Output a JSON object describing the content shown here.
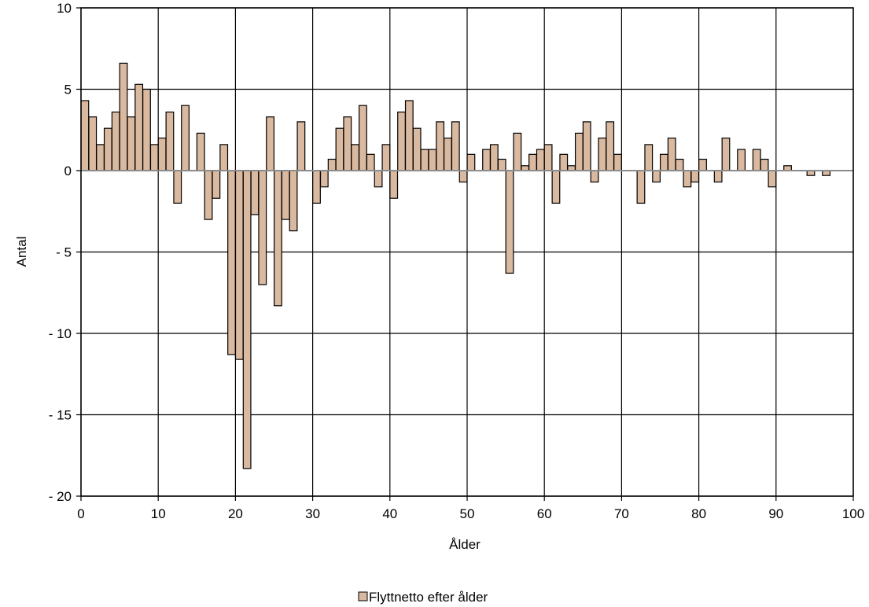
{
  "chart_data": {
    "type": "bar",
    "title": "",
    "xlabel": "Ålder",
    "ylabel": "Antal",
    "xlim": [
      0,
      100
    ],
    "ylim": [
      -20,
      10
    ],
    "x_ticks": [
      0,
      10,
      20,
      30,
      40,
      50,
      60,
      70,
      80,
      90,
      100
    ],
    "x_tick_labels": [
      "0",
      "10",
      "20",
      "30",
      "40",
      "50",
      "60",
      "70",
      "80",
      "90",
      "100"
    ],
    "y_ticks": [
      10,
      5,
      0,
      -5,
      -10,
      -15,
      -20
    ],
    "y_tick_labels": [
      "10",
      "5",
      "0",
      "- 5",
      "- 10",
      "- 15",
      "- 20"
    ],
    "grid": true,
    "legend_position": "bottom-center",
    "series": [
      {
        "name": "Flyttnetto efter ålder",
        "color": "#d9b9a0",
        "x": [
          0,
          1,
          2,
          3,
          4,
          5,
          6,
          7,
          8,
          9,
          10,
          11,
          12,
          13,
          14,
          15,
          16,
          17,
          18,
          19,
          20,
          21,
          22,
          23,
          24,
          25,
          26,
          27,
          28,
          29,
          30,
          31,
          32,
          33,
          34,
          35,
          36,
          37,
          38,
          39,
          40,
          41,
          42,
          43,
          44,
          45,
          46,
          47,
          48,
          49,
          50,
          51,
          52,
          53,
          54,
          55,
          56,
          57,
          58,
          59,
          60,
          61,
          62,
          63,
          64,
          65,
          66,
          67,
          68,
          69,
          70,
          71,
          72,
          73,
          74,
          75,
          76,
          77,
          78,
          79,
          80,
          81,
          82,
          83,
          84,
          85,
          86,
          87,
          88,
          89,
          90,
          91,
          92,
          93,
          94,
          95,
          96,
          97,
          98,
          99
        ],
        "values": [
          4.3,
          3.3,
          1.6,
          2.6,
          3.6,
          6.6,
          3.3,
          5.3,
          5.0,
          1.6,
          2.0,
          3.6,
          -2.0,
          4.0,
          0,
          2.3,
          -3.0,
          -1.7,
          1.6,
          -11.3,
          -11.6,
          -18.3,
          -2.7,
          -7.0,
          3.3,
          -8.3,
          -3.0,
          -3.7,
          3.0,
          0,
          -2.0,
          -1.0,
          0.7,
          2.6,
          3.3,
          1.6,
          4.0,
          1.0,
          -1.0,
          1.6,
          -1.7,
          3.6,
          4.3,
          2.6,
          1.3,
          1.3,
          3.0,
          2.0,
          3.0,
          -0.7,
          1.0,
          0,
          1.3,
          1.6,
          0.7,
          -6.3,
          2.3,
          0.3,
          1.0,
          1.3,
          1.6,
          -2.0,
          1.0,
          0.3,
          2.3,
          3.0,
          -0.7,
          2.0,
          3.0,
          1.0,
          0,
          0,
          -2.0,
          1.6,
          -0.7,
          1.0,
          2.0,
          0.7,
          -1.0,
          -0.7,
          0.7,
          0,
          -0.7,
          2.0,
          0,
          1.3,
          0,
          1.3,
          0.7,
          -1.0,
          0,
          0.3,
          0,
          0,
          -0.3,
          0,
          -0.3,
          0,
          0,
          0
        ]
      }
    ]
  }
}
